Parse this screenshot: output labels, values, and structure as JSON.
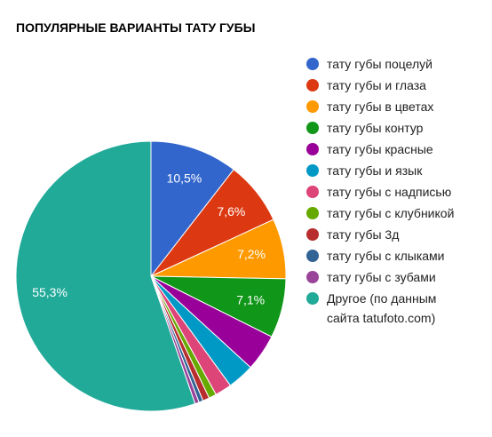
{
  "chart_data": {
    "type": "pie",
    "title": "ПОПУЛЯРНЫЕ ВАРИАНТЫ ТАТУ ГУБЫ",
    "categories": [
      "тату губы поцелуй",
      "тату губы и глаза",
      "тату губы в цветах",
      "тату губы контур",
      "тату губы красные",
      "тату губы и язык",
      "тату губы с надписью",
      "тату губы с клубникой",
      "тату губы 3д",
      "тату губы с клыками",
      "тату губы с зубами",
      "Другое (по данным сайта tatufoto.com)"
    ],
    "values": [
      10.5,
      7.6,
      7.2,
      7.1,
      4.4,
      3.2,
      2.0,
      0.9,
      0.8,
      0.5,
      0.5,
      55.3
    ],
    "value_labels": [
      "10,5%",
      "7,6%",
      "7,2%",
      "7,1%",
      null,
      null,
      null,
      null,
      null,
      null,
      null,
      "55,3%"
    ],
    "colors": [
      "#3366cc",
      "#dc3912",
      "#ff9900",
      "#109618",
      "#990099",
      "#0099c6",
      "#dd4477",
      "#66aa00",
      "#b82e2e",
      "#316395",
      "#994499",
      "#22aa99"
    ],
    "legend": "right"
  }
}
